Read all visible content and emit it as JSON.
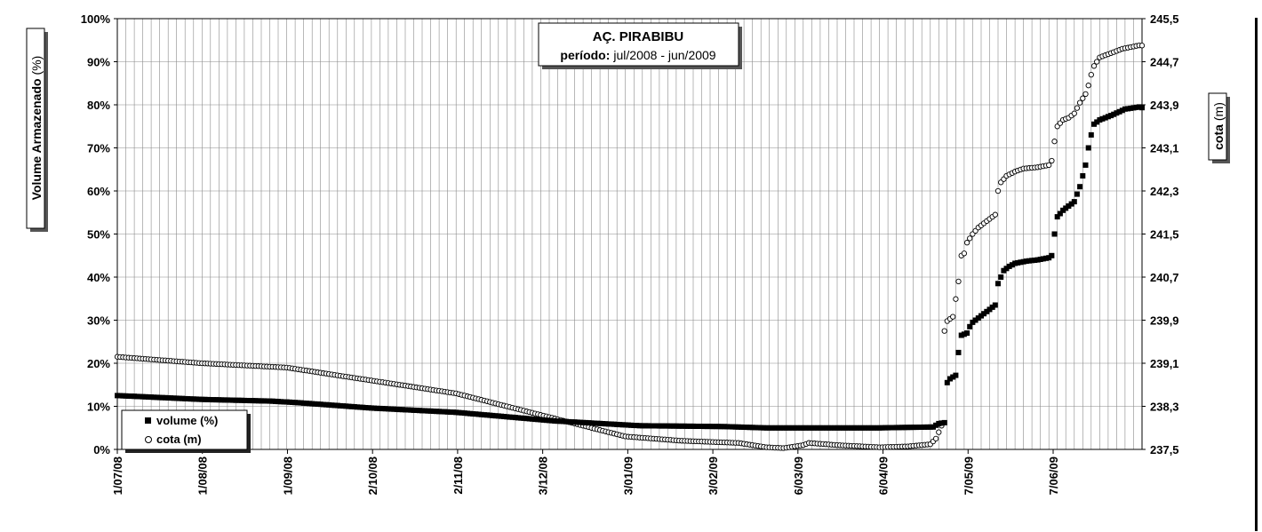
{
  "chart_data": {
    "type": "scatter",
    "title": "AÇ. PIRABIBU",
    "subtitle_label": "período:",
    "subtitle_value": "jul/2008 - jun/2009",
    "ylabel_left_main": "Volume Armazenado",
    "ylabel_left_unit": "(%)",
    "ylabel_right_main": "cota",
    "ylabel_right_unit": "(m)",
    "y_left_ticks": [
      "0%",
      "10%",
      "20%",
      "30%",
      "40%",
      "50%",
      "60%",
      "70%",
      "80%",
      "90%",
      "100%"
    ],
    "y_right_ticks": [
      "237,5",
      "238,3",
      "239,1",
      "239,9",
      "240,7",
      "241,5",
      "242,3",
      "243,1",
      "243,9",
      "244,7",
      "245,5"
    ],
    "ylim_left": [
      0,
      100
    ],
    "ylim_right": [
      237.5,
      245.5
    ],
    "x_tick_labels": [
      "1/07/08",
      "1/08/08",
      "1/09/08",
      "2/10/08",
      "2/11/08",
      "3/12/08",
      "3/01/09",
      "3/02/09",
      "6/03/09",
      "6/04/09",
      "7/05/09",
      "7/06/09"
    ],
    "xlim_days": [
      0,
      363
    ],
    "grid": true,
    "legend_position": "bottom-left",
    "series": [
      {
        "name": "volume (%)",
        "axis": "left",
        "marker": "filled-square",
        "color": "#000000",
        "keypoints": [
          [
            0,
            12.5
          ],
          [
            30,
            11.6
          ],
          [
            55,
            11.2
          ],
          [
            65,
            10.8
          ],
          [
            90,
            9.6
          ],
          [
            120,
            8.6
          ],
          [
            155,
            6.6
          ],
          [
            185,
            5.5
          ],
          [
            215,
            5.3
          ],
          [
            230,
            5.0
          ],
          [
            270,
            5.0
          ],
          [
            289,
            5.2
          ],
          [
            291,
            6.0
          ],
          [
            293,
            6.2
          ],
          [
            294,
            15.5
          ],
          [
            295,
            16.4
          ],
          [
            297,
            17.2
          ],
          [
            298,
            22.5
          ],
          [
            299,
            26.5
          ],
          [
            301,
            27.0
          ],
          [
            302,
            28.5
          ],
          [
            303,
            29.5
          ],
          [
            305,
            30.5
          ],
          [
            307,
            31.5
          ],
          [
            309,
            32.5
          ],
          [
            311,
            33.5
          ],
          [
            312,
            38.5
          ],
          [
            314,
            41.5
          ],
          [
            316,
            42.5
          ],
          [
            318,
            43.2
          ],
          [
            322,
            43.7
          ],
          [
            326,
            44.0
          ],
          [
            330,
            44.5
          ],
          [
            331,
            45.0
          ],
          [
            332,
            50.0
          ],
          [
            333,
            54.0
          ],
          [
            335,
            55.5
          ],
          [
            337,
            56.5
          ],
          [
            339,
            57.5
          ],
          [
            341,
            61.0
          ],
          [
            343,
            66.0
          ],
          [
            344,
            70.0
          ],
          [
            345,
            73.0
          ],
          [
            346,
            75.5
          ],
          [
            348,
            76.5
          ],
          [
            352,
            77.5
          ],
          [
            357,
            79.0
          ],
          [
            362,
            79.5
          ],
          [
            368,
            78.5
          ],
          [
            372,
            78.0
          ]
        ]
      },
      {
        "name": "cota (m)",
        "axis": "left",
        "marker": "open-circle",
        "color": "#000000",
        "keypoints": [
          [
            0,
            21.5
          ],
          [
            30,
            20.0
          ],
          [
            60,
            19.0
          ],
          [
            90,
            16.0
          ],
          [
            120,
            13.0
          ],
          [
            150,
            8.0
          ],
          [
            180,
            3.0
          ],
          [
            200,
            2.0
          ],
          [
            220,
            1.5
          ],
          [
            230,
            0.5
          ],
          [
            236,
            0.3
          ],
          [
            243,
            1.0
          ],
          [
            245,
            1.5
          ],
          [
            255,
            1.0
          ],
          [
            270,
            0.5
          ],
          [
            280,
            0.7
          ],
          [
            288,
            1.2
          ],
          [
            290,
            2.5
          ],
          [
            291,
            4.0
          ],
          [
            292,
            5.5
          ],
          [
            293,
            27.5
          ],
          [
            294,
            29.8
          ],
          [
            296,
            30.8
          ],
          [
            298,
            39.0
          ],
          [
            299,
            45.0
          ],
          [
            300,
            45.5
          ],
          [
            301,
            48.0
          ],
          [
            303,
            50.0
          ],
          [
            305,
            51.5
          ],
          [
            307,
            52.5
          ],
          [
            309,
            53.5
          ],
          [
            311,
            54.5
          ],
          [
            312,
            60.0
          ],
          [
            313,
            62.0
          ],
          [
            315,
            63.5
          ],
          [
            318,
            64.5
          ],
          [
            321,
            65.2
          ],
          [
            326,
            65.5
          ],
          [
            330,
            66.0
          ],
          [
            331,
            67.0
          ],
          [
            332,
            71.5
          ],
          [
            333,
            75.0
          ],
          [
            335,
            76.5
          ],
          [
            337,
            77.0
          ],
          [
            339,
            78.0
          ],
          [
            341,
            80.5
          ],
          [
            343,
            82.5
          ],
          [
            344,
            84.5
          ],
          [
            345,
            87.0
          ],
          [
            346,
            89.0
          ],
          [
            348,
            91.0
          ],
          [
            352,
            92.0
          ],
          [
            356,
            93.0
          ],
          [
            362,
            93.8
          ],
          [
            368,
            93.5
          ],
          [
            372,
            92.5
          ]
        ]
      }
    ]
  },
  "colors": {
    "axis": "#000000",
    "grid": "#808080",
    "background": "#ffffff"
  }
}
